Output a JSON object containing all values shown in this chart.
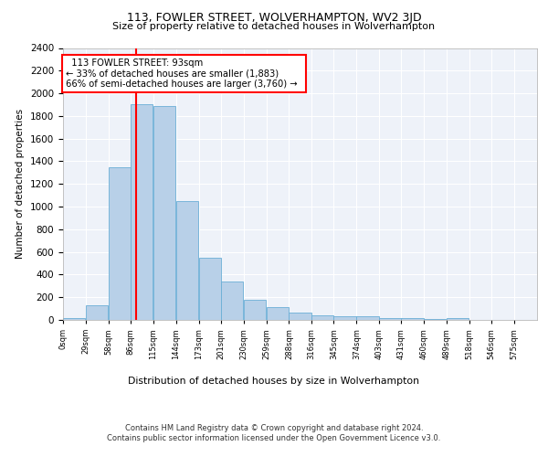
{
  "title1": "113, FOWLER STREET, WOLVERHAMPTON, WV2 3JD",
  "title2": "Size of property relative to detached houses in Wolverhampton",
  "xlabel": "Distribution of detached houses by size in Wolverhampton",
  "ylabel": "Number of detached properties",
  "footer1": "Contains HM Land Registry data © Crown copyright and database right 2024.",
  "footer2": "Contains public sector information licensed under the Open Government Licence v3.0.",
  "annotation_line1": "113 FOWLER STREET: 93sqm",
  "annotation_line2": "← 33% of detached houses are smaller (1,883)",
  "annotation_line3": "66% of semi-detached houses are larger (3,760) →",
  "property_size": 93,
  "bar_color": "#b8d0e8",
  "bar_edge_color": "#6aaed6",
  "bin_starts": [
    0,
    29,
    58,
    86,
    115,
    144,
    173,
    201,
    230,
    259,
    288,
    316,
    345,
    374,
    403,
    431,
    460,
    489,
    518,
    546
  ],
  "bin_labels": [
    "0sqm",
    "29sqm",
    "58sqm",
    "86sqm",
    "115sqm",
    "144sqm",
    "173sqm",
    "201sqm",
    "230sqm",
    "259sqm",
    "288sqm",
    "316sqm",
    "345sqm",
    "374sqm",
    "403sqm",
    "431sqm",
    "460sqm",
    "489sqm",
    "518sqm",
    "546sqm",
    "575sqm"
  ],
  "bar_heights": [
    15,
    130,
    1350,
    1900,
    1890,
    1045,
    550,
    340,
    175,
    115,
    65,
    40,
    35,
    30,
    20,
    15,
    5,
    20,
    0,
    0
  ],
  "ylim": [
    0,
    2400
  ],
  "yticks": [
    0,
    200,
    400,
    600,
    800,
    1000,
    1200,
    1400,
    1600,
    1800,
    2000,
    2200,
    2400
  ],
  "red_line_x": 93,
  "background_color": "#eef2f9",
  "fig_background": "#ffffff",
  "grid_color": "#ffffff"
}
